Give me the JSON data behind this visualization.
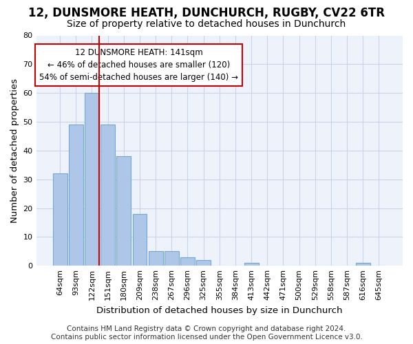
{
  "title": "12, DUNSMORE HEATH, DUNCHURCH, RUGBY, CV22 6TR",
  "subtitle": "Size of property relative to detached houses in Dunchurch",
  "xlabel": "Distribution of detached houses by size in Dunchurch",
  "ylabel": "Number of detached properties",
  "bar_labels": [
    "64sqm",
    "93sqm",
    "122sqm",
    "151sqm",
    "180sqm",
    "209sqm",
    "238sqm",
    "267sqm",
    "296sqm",
    "325sqm",
    "355sqm",
    "384sqm",
    "413sqm",
    "442sqm",
    "471sqm",
    "500sqm",
    "529sqm",
    "558sqm",
    "587sqm",
    "616sqm",
    "645sqm"
  ],
  "bar_values": [
    32,
    49,
    60,
    49,
    38,
    18,
    5,
    5,
    3,
    2,
    0,
    0,
    1,
    0,
    0,
    0,
    0,
    0,
    0,
    1,
    0
  ],
  "bar_color": "#aec6e8",
  "bar_edge_color": "#6fa8dc",
  "grid_color": "#c8d4e8",
  "background_color": "#eef2fb",
  "vline_color": "#cc0000",
  "vline_bar_index": 2,
  "annotation_lines": [
    "12 DUNSMORE HEATH: 141sqm",
    "← 46% of detached houses are smaller (120)",
    "54% of semi-detached houses are larger (140) →"
  ],
  "ylim": [
    0,
    80
  ],
  "yticks": [
    0,
    10,
    20,
    30,
    40,
    50,
    60,
    70,
    80
  ],
  "footer_line1": "Contains HM Land Registry data © Crown copyright and database right 2024.",
  "footer_line2": "Contains public sector information licensed under the Open Government Licence v3.0.",
  "title_fontsize": 12,
  "subtitle_fontsize": 10,
  "axis_label_fontsize": 9.5,
  "tick_fontsize": 8,
  "footer_fontsize": 7.5
}
